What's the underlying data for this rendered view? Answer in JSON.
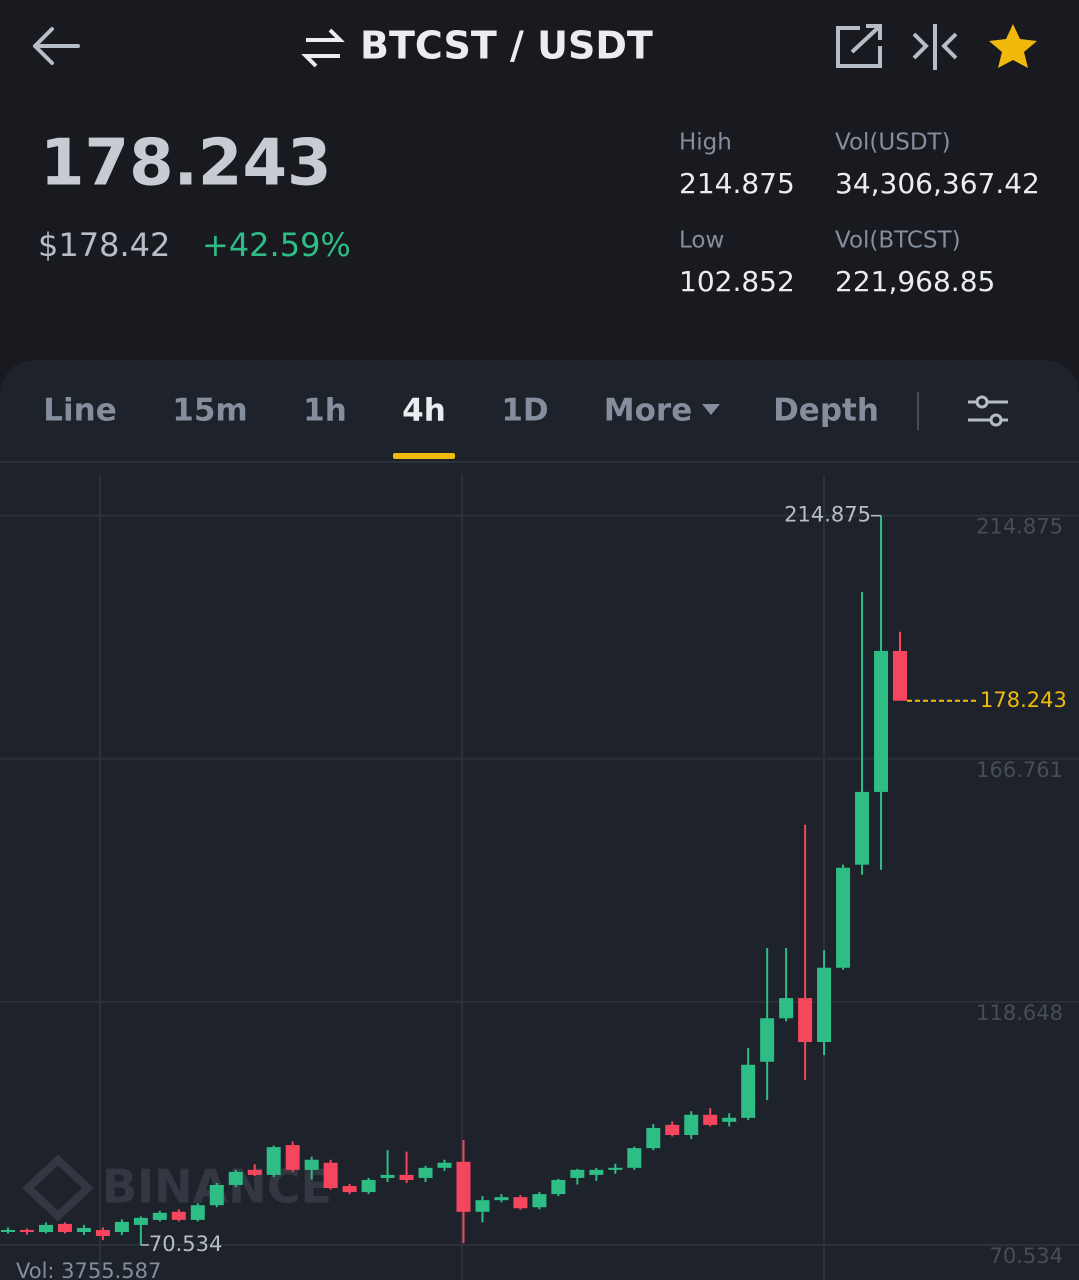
{
  "header": {
    "title": "BTCST / USDT"
  },
  "ticker": {
    "price": "178.243",
    "price_usd": "$178.42",
    "change": "+42.59%",
    "stats": [
      {
        "label": "High",
        "value": "214.875"
      },
      {
        "label": "Vol(USDT)",
        "value": "34,306,367.42"
      },
      {
        "label": "Low",
        "value": "102.852"
      },
      {
        "label": "Vol(BTCST)",
        "value": "221,968.85"
      }
    ]
  },
  "tabs": {
    "items": [
      "Line",
      "15m",
      "1h",
      "4h",
      "1D",
      "More",
      "Depth"
    ],
    "active": 3
  },
  "chart_data": {
    "type": "candlestick",
    "ylim": [
      63.6,
      225.5
    ],
    "yticks": [
      214.875,
      166.761,
      118.648,
      70.534
    ],
    "grid": true,
    "up_color": "#2ebd85",
    "down_color": "#f6465d",
    "last_price_color": "#f0b90b",
    "high_label": 214.875,
    "low_label": 70.534,
    "last_price": 178.243,
    "volume_label": "Vol: 3755.587",
    "watermark": "BINANCE",
    "open": [
      73.1,
      73.5,
      73.1,
      74.7,
      73.1,
      73.5,
      73.1,
      74.5,
      75.5,
      77.1,
      75.5,
      78.4,
      82.4,
      85.4,
      84.4,
      90.3,
      85.4,
      86.8,
      82.2,
      81.0,
      83.8,
      84.4,
      83.8,
      85.8,
      87.0,
      77.1,
      79.4,
      80.0,
      78.0,
      80.6,
      83.8,
      84.4,
      85.4,
      85.8,
      89.7,
      94.3,
      92.3,
      96.3,
      94.9,
      95.7,
      106.8,
      115.4,
      119.4,
      110.7,
      125.4,
      145.8,
      160.2,
      188.1
    ],
    "high": [
      74.0,
      73.8,
      75.0,
      75.0,
      74.5,
      74.0,
      75.6,
      76.2,
      77.3,
      77.6,
      78.8,
      82.8,
      85.4,
      86.5,
      90.2,
      91.0,
      88.0,
      87.4,
      82.6,
      83.8,
      89.3,
      89.0,
      86.2,
      87.4,
      91.3,
      80.2,
      80.6,
      80.4,
      81.0,
      83.6,
      85.6,
      85.8,
      86.6,
      90.0,
      94.5,
      95.0,
      97.0,
      97.6,
      96.6,
      109.5,
      129.3,
      129.3,
      153.7,
      128.9,
      145.8,
      199.8,
      214.875,
      191.9
    ],
    "low": [
      72.8,
      72.6,
      72.8,
      72.8,
      72.5,
      71.5,
      72.5,
      70.534,
      75.2,
      75.2,
      75.2,
      78.0,
      82.0,
      84.2,
      84.0,
      85.0,
      83.5,
      81.5,
      80.6,
      80.6,
      83.0,
      82.8,
      83.0,
      85.2,
      70.9,
      75.0,
      79.0,
      77.5,
      77.6,
      80.2,
      82.5,
      83.2,
      84.6,
      85.4,
      89.3,
      92.0,
      91.5,
      94.0,
      94.0,
      95.3,
      99.2,
      114.8,
      103.2,
      108.1,
      125.0,
      143.8,
      144.8,
      178.243
    ],
    "close": [
      73.5,
      73.1,
      74.5,
      73.1,
      73.9,
      72.3,
      75.1,
      75.9,
      76.9,
      75.5,
      78.4,
      82.4,
      85.0,
      84.4,
      89.9,
      85.4,
      87.4,
      81.8,
      81.0,
      83.4,
      84.4,
      83.4,
      85.8,
      86.8,
      77.1,
      79.4,
      80.0,
      77.8,
      80.6,
      83.4,
      85.4,
      85.4,
      85.8,
      89.7,
      93.7,
      92.3,
      96.3,
      94.3,
      95.7,
      106.2,
      115.4,
      119.4,
      110.7,
      125.4,
      145.2,
      160.2,
      188.1,
      178.243
    ]
  }
}
